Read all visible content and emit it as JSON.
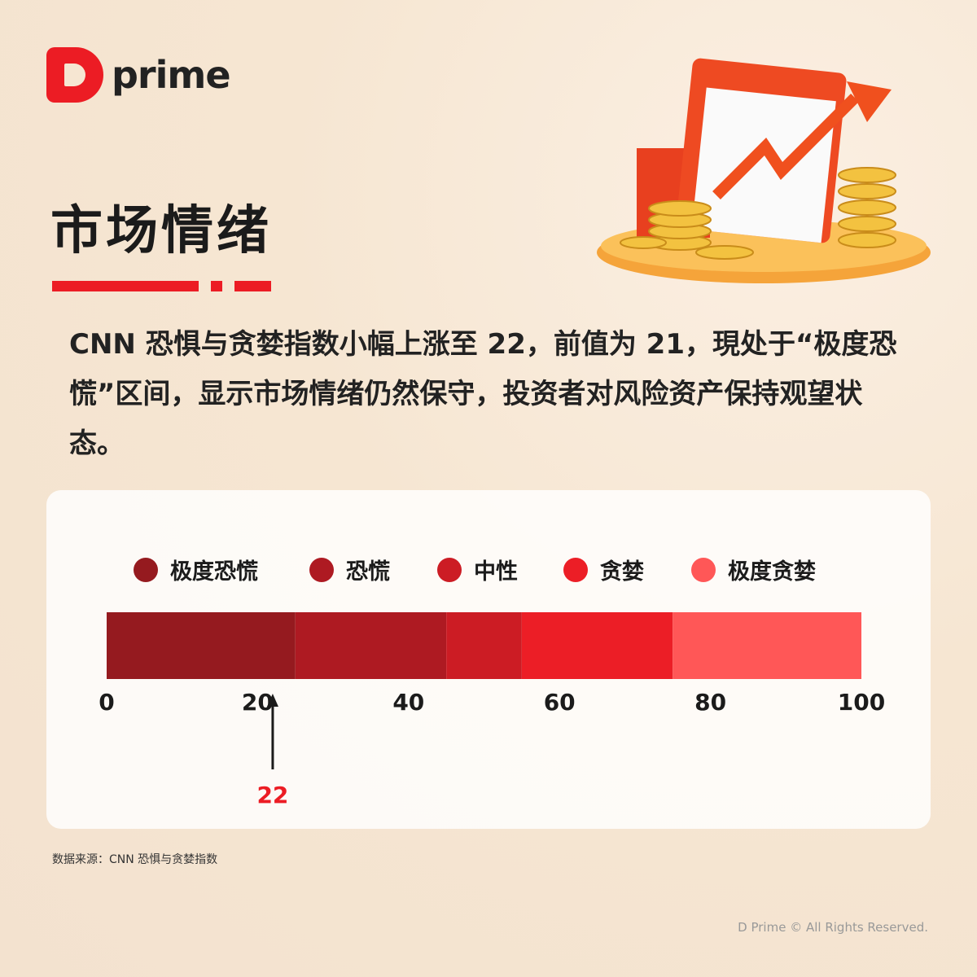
{
  "brand": {
    "logo_text": "prime"
  },
  "title": "市场情绪",
  "paragraph": "CNN 恐惧与贪婪指数小幅上涨至 22，前值为 21，現处于“极度恐慌”区间，显示市场情绪仍然保守，投资者对风险资产保持观望状态。",
  "chart_data": {
    "type": "bar",
    "orientation": "horizontal-stacked-gauge",
    "segments": [
      {
        "name": "极度恐慌",
        "from": 0,
        "to": 25,
        "color": "#951a1f"
      },
      {
        "name": "恐慌",
        "from": 25,
        "to": 45,
        "color": "#ae1a22"
      },
      {
        "name": "中性",
        "from": 45,
        "to": 55,
        "color": "#cc1c24"
      },
      {
        "name": "贪婪",
        "from": 55,
        "to": 75,
        "color": "#ec1e26"
      },
      {
        "name": "极度贪婪",
        "from": 75,
        "to": 100,
        "color": "#ff5757"
      }
    ],
    "xlim": [
      0,
      100
    ],
    "ticks": [
      "0",
      "20",
      "40",
      "60",
      "80",
      "100"
    ],
    "pointer": {
      "value": 22,
      "label": "22",
      "color": "#ec1c24"
    },
    "legend": "top"
  },
  "footer": {
    "source": "数据来源：CNN 恐惧与贪婪指数",
    "copyright": "D Prime © All Rights Reserved."
  }
}
